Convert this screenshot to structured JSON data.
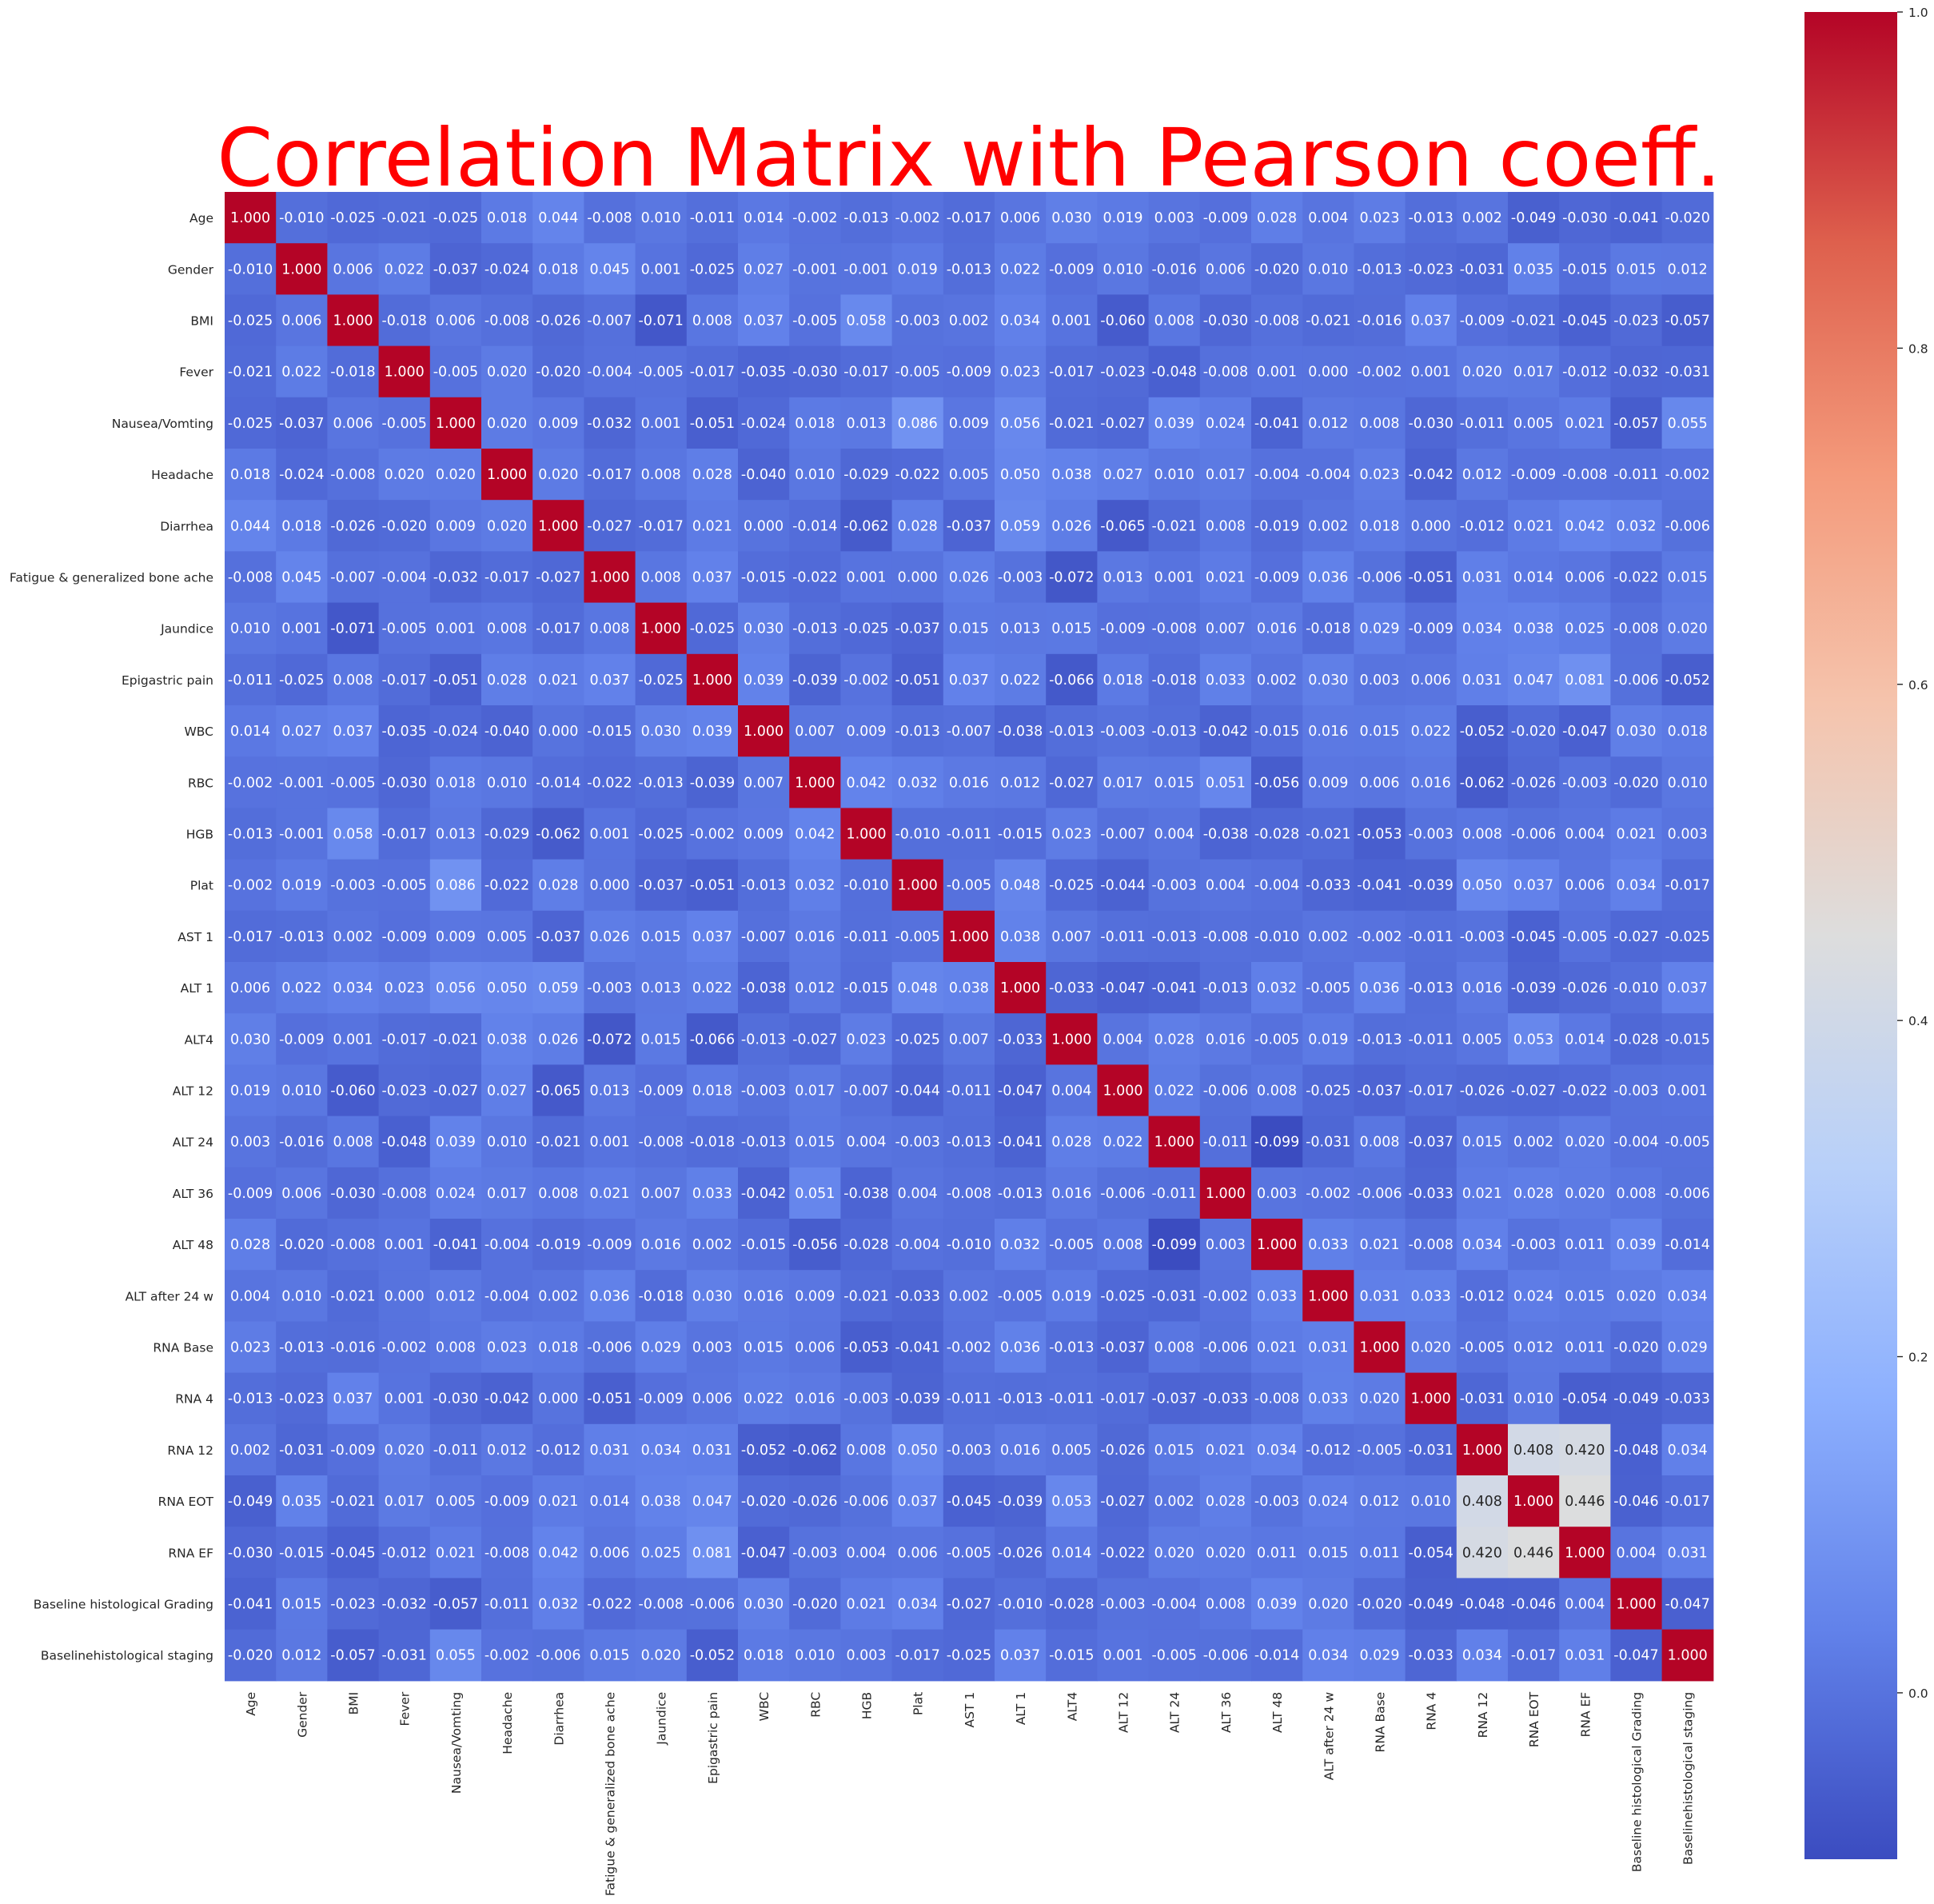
{
  "chart_data": {
    "type": "heatmap",
    "title": "Correlation Matrix with Pearson coeff.",
    "title_color": "#ff0000",
    "colormap": "coolwarm",
    "vmin": -0.099,
    "vmax": 1.0,
    "annotation_format": "3 decimals",
    "labels": [
      "Age",
      "Gender",
      "BMI",
      "Fever",
      "Nausea/Vomting",
      "Headache",
      "Diarrhea",
      "Fatigue & generalized bone ache",
      "Jaundice",
      "Epigastric pain",
      "WBC",
      "RBC",
      "HGB",
      "Plat",
      "AST 1",
      "ALT 1",
      "ALT4",
      "ALT 12",
      "ALT 24",
      "ALT 36",
      "ALT 48",
      "ALT after 24 w",
      "RNA Base",
      "RNA 4",
      "RNA 12",
      "RNA EOT",
      "RNA EF",
      "Baseline histological Grading",
      "Baselinehistological staging"
    ],
    "values": [
      [
        1.0,
        -0.01,
        -0.025,
        -0.021,
        -0.025,
        0.018,
        0.044,
        -0.008,
        0.01,
        -0.011,
        0.014,
        -0.002,
        -0.013,
        -0.002,
        -0.017,
        0.006,
        0.03,
        0.019,
        0.003,
        -0.009,
        0.028,
        0.004,
        0.023,
        -0.013,
        0.002,
        -0.049,
        -0.03,
        -0.041,
        -0.02
      ],
      [
        -0.01,
        1.0,
        0.006,
        0.022,
        -0.037,
        -0.024,
        0.018,
        0.045,
        0.001,
        -0.025,
        0.027,
        -0.001,
        -0.001,
        0.019,
        -0.013,
        0.022,
        -0.009,
        0.01,
        -0.016,
        0.006,
        -0.02,
        0.01,
        -0.013,
        -0.023,
        -0.031,
        0.035,
        -0.015,
        0.015,
        0.012
      ],
      [
        -0.025,
        0.006,
        1.0,
        -0.018,
        0.006,
        -0.008,
        -0.026,
        -0.007,
        -0.071,
        0.008,
        0.037,
        -0.005,
        0.058,
        -0.003,
        0.002,
        0.034,
        0.001,
        -0.06,
        0.008,
        -0.03,
        -0.008,
        -0.021,
        -0.016,
        0.037,
        -0.009,
        -0.021,
        -0.045,
        -0.023,
        -0.057
      ],
      [
        -0.021,
        0.022,
        -0.018,
        1.0,
        -0.005,
        0.02,
        -0.02,
        -0.004,
        -0.005,
        -0.017,
        -0.035,
        -0.03,
        -0.017,
        -0.005,
        -0.009,
        0.023,
        -0.017,
        -0.023,
        -0.048,
        -0.008,
        0.001,
        0.0,
        -0.002,
        0.001,
        0.02,
        0.017,
        -0.012,
        -0.032,
        -0.031
      ],
      [
        -0.025,
        -0.037,
        0.006,
        -0.005,
        1.0,
        0.02,
        0.009,
        -0.032,
        0.001,
        -0.051,
        -0.024,
        0.018,
        0.013,
        0.086,
        0.009,
        0.056,
        -0.021,
        -0.027,
        0.039,
        0.024,
        -0.041,
        0.012,
        0.008,
        -0.03,
        -0.011,
        0.005,
        0.021,
        -0.057,
        0.055
      ],
      [
        0.018,
        -0.024,
        -0.008,
        0.02,
        0.02,
        1.0,
        0.02,
        -0.017,
        0.008,
        0.028,
        -0.04,
        0.01,
        -0.029,
        -0.022,
        0.005,
        0.05,
        0.038,
        0.027,
        0.01,
        0.017,
        -0.004,
        -0.004,
        0.023,
        -0.042,
        0.012,
        -0.009,
        -0.008,
        -0.011,
        -0.002
      ],
      [
        0.044,
        0.018,
        -0.026,
        -0.02,
        0.009,
        0.02,
        1.0,
        -0.027,
        -0.017,
        0.021,
        0.0,
        -0.014,
        -0.062,
        0.028,
        -0.037,
        0.059,
        0.026,
        -0.065,
        -0.021,
        0.008,
        -0.019,
        0.002,
        0.018,
        -0.0,
        -0.012,
        0.021,
        0.042,
        0.032,
        -0.006
      ],
      [
        -0.008,
        0.045,
        -0.007,
        -0.004,
        -0.032,
        -0.017,
        -0.027,
        1.0,
        0.008,
        0.037,
        -0.015,
        -0.022,
        0.001,
        -0.0,
        0.026,
        -0.003,
        -0.072,
        0.013,
        0.001,
        0.021,
        -0.009,
        0.036,
        -0.006,
        -0.051,
        0.031,
        0.014,
        0.006,
        -0.022,
        0.015
      ],
      [
        0.01,
        0.001,
        -0.071,
        -0.005,
        0.001,
        0.008,
        -0.017,
        0.008,
        1.0,
        -0.025,
        0.03,
        -0.013,
        -0.025,
        -0.037,
        0.015,
        0.013,
        0.015,
        -0.009,
        -0.008,
        0.007,
        0.016,
        -0.018,
        0.029,
        -0.009,
        0.034,
        0.038,
        0.025,
        -0.008,
        0.02
      ],
      [
        -0.011,
        -0.025,
        0.008,
        -0.017,
        -0.051,
        0.028,
        0.021,
        0.037,
        -0.025,
        1.0,
        0.039,
        -0.039,
        -0.002,
        -0.051,
        0.037,
        0.022,
        -0.066,
        0.018,
        -0.018,
        0.033,
        0.002,
        0.03,
        0.003,
        0.006,
        0.031,
        0.047,
        0.081,
        -0.006,
        -0.052
      ],
      [
        0.014,
        0.027,
        0.037,
        -0.035,
        -0.024,
        -0.04,
        0.0,
        -0.015,
        0.03,
        0.039,
        1.0,
        0.007,
        0.009,
        -0.013,
        -0.007,
        -0.038,
        -0.013,
        -0.003,
        -0.013,
        -0.042,
        -0.015,
        0.016,
        0.015,
        0.022,
        -0.052,
        -0.02,
        -0.047,
        0.03,
        0.018
      ],
      [
        -0.002,
        -0.001,
        -0.005,
        -0.03,
        0.018,
        0.01,
        -0.014,
        -0.022,
        -0.013,
        -0.039,
        0.007,
        1.0,
        0.042,
        0.032,
        0.016,
        0.012,
        -0.027,
        0.017,
        0.015,
        0.051,
        -0.056,
        0.009,
        0.006,
        0.016,
        -0.062,
        -0.026,
        -0.003,
        -0.02,
        0.01
      ],
      [
        -0.013,
        -0.001,
        0.058,
        -0.017,
        0.013,
        -0.029,
        -0.062,
        0.001,
        -0.025,
        -0.002,
        0.009,
        0.042,
        1.0,
        -0.01,
        -0.011,
        -0.015,
        0.023,
        -0.007,
        0.004,
        -0.038,
        -0.028,
        -0.021,
        -0.053,
        -0.003,
        0.008,
        -0.006,
        0.004,
        0.021,
        0.003
      ],
      [
        -0.002,
        0.019,
        -0.003,
        -0.005,
        0.086,
        -0.022,
        0.028,
        -0.0,
        -0.037,
        -0.051,
        -0.013,
        0.032,
        -0.01,
        1.0,
        -0.005,
        0.048,
        -0.025,
        -0.044,
        -0.003,
        0.004,
        -0.004,
        -0.033,
        -0.041,
        -0.039,
        0.05,
        0.037,
        0.006,
        0.034,
        -0.017
      ],
      [
        -0.017,
        -0.013,
        0.002,
        -0.009,
        0.009,
        0.005,
        -0.037,
        0.026,
        0.015,
        0.037,
        -0.007,
        0.016,
        -0.011,
        -0.005,
        1.0,
        0.038,
        0.007,
        -0.011,
        -0.013,
        -0.008,
        -0.01,
        0.002,
        -0.002,
        -0.011,
        -0.003,
        -0.045,
        -0.005,
        -0.027,
        -0.025
      ],
      [
        0.006,
        0.022,
        0.034,
        0.023,
        0.056,
        0.05,
        0.059,
        -0.003,
        0.013,
        0.022,
        -0.038,
        0.012,
        -0.015,
        0.048,
        0.038,
        1.0,
        -0.033,
        -0.047,
        -0.041,
        -0.013,
        0.032,
        -0.005,
        0.036,
        -0.013,
        0.016,
        -0.039,
        -0.026,
        -0.01,
        0.037
      ],
      [
        0.03,
        -0.009,
        0.001,
        -0.017,
        -0.021,
        0.038,
        0.026,
        -0.072,
        0.015,
        -0.066,
        -0.013,
        -0.027,
        0.023,
        -0.025,
        0.007,
        -0.033,
        1.0,
        0.004,
        0.028,
        0.016,
        -0.005,
        0.019,
        -0.013,
        -0.011,
        0.005,
        0.053,
        0.014,
        -0.028,
        -0.015
      ],
      [
        0.019,
        0.01,
        -0.06,
        -0.023,
        -0.027,
        0.027,
        -0.065,
        0.013,
        -0.009,
        0.018,
        -0.003,
        0.017,
        -0.007,
        -0.044,
        -0.011,
        -0.047,
        0.004,
        1.0,
        0.022,
        -0.006,
        0.008,
        -0.025,
        -0.037,
        -0.017,
        -0.026,
        -0.027,
        -0.022,
        -0.003,
        0.001
      ],
      [
        0.003,
        -0.016,
        0.008,
        -0.048,
        0.039,
        0.01,
        -0.021,
        0.001,
        -0.008,
        -0.018,
        -0.013,
        0.015,
        0.004,
        -0.003,
        -0.013,
        -0.041,
        0.028,
        0.022,
        1.0,
        -0.011,
        -0.099,
        -0.031,
        0.008,
        -0.037,
        0.015,
        0.002,
        0.02,
        -0.004,
        -0.005
      ],
      [
        -0.009,
        0.006,
        -0.03,
        -0.008,
        0.024,
        0.017,
        0.008,
        0.021,
        0.007,
        0.033,
        -0.042,
        0.051,
        -0.038,
        0.004,
        -0.008,
        -0.013,
        0.016,
        -0.006,
        -0.011,
        1.0,
        0.003,
        -0.002,
        -0.006,
        -0.033,
        0.021,
        0.028,
        0.02,
        0.008,
        -0.006
      ],
      [
        0.028,
        -0.02,
        -0.008,
        0.001,
        -0.041,
        -0.004,
        -0.019,
        -0.009,
        0.016,
        0.002,
        -0.015,
        -0.056,
        -0.028,
        -0.004,
        -0.01,
        0.032,
        -0.005,
        0.008,
        -0.099,
        0.003,
        1.0,
        0.033,
        0.021,
        -0.008,
        0.034,
        -0.003,
        0.011,
        0.039,
        -0.014
      ],
      [
        0.004,
        0.01,
        -0.021,
        0.0,
        0.012,
        -0.004,
        0.002,
        0.036,
        -0.018,
        0.03,
        0.016,
        0.009,
        -0.021,
        -0.033,
        0.002,
        -0.005,
        0.019,
        -0.025,
        -0.031,
        -0.002,
        0.033,
        1.0,
        0.031,
        0.033,
        -0.012,
        0.024,
        0.015,
        0.02,
        0.034
      ],
      [
        0.023,
        -0.013,
        -0.016,
        -0.002,
        0.008,
        0.023,
        0.018,
        -0.006,
        0.029,
        0.003,
        0.015,
        0.006,
        -0.053,
        -0.041,
        -0.002,
        0.036,
        -0.013,
        -0.037,
        0.008,
        -0.006,
        0.021,
        0.031,
        1.0,
        0.02,
        -0.005,
        0.012,
        0.011,
        -0.02,
        0.029
      ],
      [
        -0.013,
        -0.023,
        0.037,
        0.001,
        -0.03,
        -0.042,
        -0.0,
        -0.051,
        -0.009,
        0.006,
        0.022,
        0.016,
        -0.003,
        -0.039,
        -0.011,
        -0.013,
        -0.011,
        -0.017,
        -0.037,
        -0.033,
        -0.008,
        0.033,
        0.02,
        1.0,
        -0.031,
        0.01,
        -0.054,
        -0.049,
        -0.033
      ],
      [
        0.002,
        -0.031,
        -0.009,
        0.02,
        -0.011,
        0.012,
        -0.012,
        0.031,
        0.034,
        0.031,
        -0.052,
        -0.062,
        0.008,
        0.05,
        -0.003,
        0.016,
        0.005,
        -0.026,
        0.015,
        0.021,
        0.034,
        -0.012,
        -0.005,
        -0.031,
        1.0,
        0.408,
        0.42,
        -0.048,
        0.034
      ],
      [
        -0.049,
        0.035,
        -0.021,
        0.017,
        0.005,
        -0.009,
        0.021,
        0.014,
        0.038,
        0.047,
        -0.02,
        -0.026,
        -0.006,
        0.037,
        -0.045,
        -0.039,
        0.053,
        -0.027,
        0.002,
        0.028,
        -0.003,
        0.024,
        0.012,
        0.01,
        0.408,
        1.0,
        0.446,
        -0.046,
        -0.017
      ],
      [
        -0.03,
        -0.015,
        -0.045,
        -0.012,
        0.021,
        -0.008,
        0.042,
        0.006,
        0.025,
        0.081,
        -0.047,
        -0.003,
        0.004,
        0.006,
        -0.005,
        -0.026,
        0.014,
        -0.022,
        0.02,
        0.02,
        0.011,
        0.015,
        0.011,
        -0.054,
        0.42,
        0.446,
        1.0,
        0.004,
        0.031
      ],
      [
        -0.041,
        0.015,
        -0.023,
        -0.032,
        -0.057,
        -0.011,
        0.032,
        -0.022,
        -0.008,
        -0.006,
        0.03,
        -0.02,
        0.021,
        0.034,
        -0.027,
        -0.01,
        -0.028,
        -0.003,
        -0.004,
        0.008,
        0.039,
        0.02,
        -0.02,
        -0.049,
        -0.048,
        -0.046,
        0.004,
        1.0,
        -0.047
      ],
      [
        -0.02,
        0.012,
        -0.057,
        -0.031,
        0.055,
        -0.002,
        -0.006,
        0.015,
        0.02,
        -0.052,
        0.018,
        0.01,
        0.003,
        -0.017,
        -0.025,
        0.037,
        -0.015,
        0.001,
        -0.005,
        -0.006,
        -0.014,
        0.034,
        0.029,
        -0.033,
        0.034,
        -0.017,
        0.031,
        -0.047,
        1.0
      ]
    ],
    "colorbar_ticks": [
      0.0,
      0.2,
      0.4,
      0.6,
      0.8,
      1.0
    ],
    "colorbar_tick_labels": [
      "0.0",
      "0.2",
      "0.4",
      "0.6",
      "0.8",
      "1.0"
    ]
  }
}
